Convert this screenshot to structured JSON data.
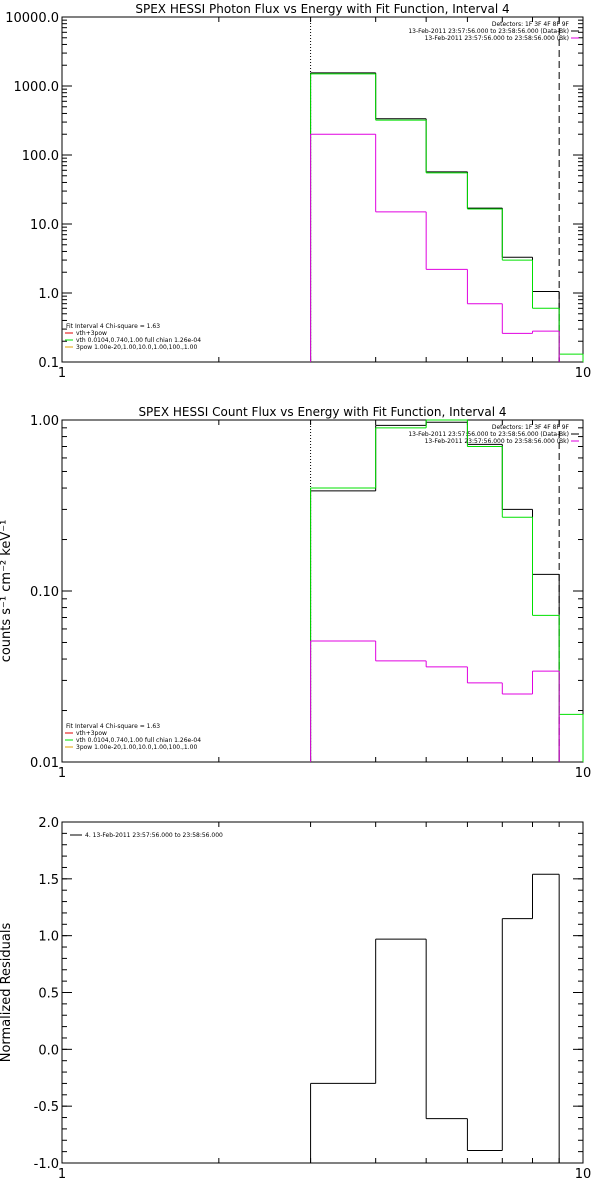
{
  "colors": {
    "black": "#000000",
    "green": "#00e000",
    "magenta": "#e000e0",
    "orange": "#e0a000",
    "red": "#e00000"
  },
  "chart_data": [
    {
      "type": "line",
      "title": "SPEX HESSI Photon Flux vs Energy with Fit Function, Interval 4",
      "xlabel": "",
      "ylabel": "",
      "xscale": "log",
      "yscale": "log",
      "xlim": [
        1,
        10
      ],
      "ylim": [
        0.1,
        10000
      ],
      "x_ticks": [
        "1",
        "10"
      ],
      "y_ticks": [
        {
          "v": 0.1,
          "label": "0.1"
        },
        {
          "v": 1,
          "label": "1.0"
        },
        {
          "v": 10,
          "label": "10.0"
        },
        {
          "v": 100,
          "label": "100.0"
        },
        {
          "v": 1000,
          "label": "1000.0"
        },
        {
          "v": 10000,
          "label": "10000.0"
        }
      ],
      "energy_edges": [
        3,
        4,
        5,
        6,
        7,
        8,
        9,
        10
      ],
      "vlines": [
        {
          "x": 3,
          "style": "dotted"
        },
        {
          "x": 9,
          "style": "dashed"
        }
      ],
      "series": [
        {
          "color": "black",
          "values": [
            1550,
            335,
            57,
            17,
            3.3,
            1.05,
            null
          ]
        },
        {
          "color": "green",
          "values": [
            1500,
            320,
            55,
            16.5,
            3.0,
            0.6,
            0.13
          ]
        },
        {
          "color": "magenta",
          "values": [
            200,
            15,
            2.2,
            0.7,
            0.26,
            0.28,
            null
          ]
        }
      ],
      "legend_top": [
        "Detectors: 1F 3F 4F 8F 9F",
        "13-Feb-2011 23:57:56.000 to 23:58:56.000 (Data-Bk)",
        "13-Feb-2011 23:57:56.000 to 23:58:56.000 (Bk)"
      ],
      "legend_bottom": [
        "Fit Interval  4    Chi-square = 1.63",
        "vth+3pow",
        "vth 0.0104,0.740,1.00  full chian 1.26e-04",
        "3pow 1.00e-20,1.00,10.0,1.00,100.,1.00"
      ]
    },
    {
      "type": "line",
      "title": "SPEX HESSI Count Flux vs Energy with Fit Function, Interval 4",
      "xlabel": "",
      "ylabel": "counts s⁻¹ cm⁻² keV⁻¹",
      "xscale": "log",
      "yscale": "log",
      "xlim": [
        1,
        10
      ],
      "ylim": [
        0.01,
        1.0
      ],
      "x_ticks": [
        "1",
        "10"
      ],
      "y_ticks": [
        {
          "v": 0.01,
          "label": "0.01"
        },
        {
          "v": 0.1,
          "label": "0.10"
        },
        {
          "v": 1.0,
          "label": "1.00"
        }
      ],
      "energy_edges": [
        3,
        4,
        5,
        6,
        7,
        8,
        9,
        10
      ],
      "vlines": [
        {
          "x": 3,
          "style": "dotted"
        },
        {
          "x": 9,
          "style": "dashed"
        }
      ],
      "series": [
        {
          "color": "black",
          "values": [
            0.385,
            0.93,
            0.97,
            0.72,
            0.3,
            0.125,
            null
          ]
        },
        {
          "color": "green",
          "values": [
            0.4,
            0.9,
            1.0,
            0.7,
            0.27,
            0.072,
            0.019
          ]
        },
        {
          "color": "magenta",
          "values": [
            0.051,
            0.039,
            0.036,
            0.029,
            0.025,
            0.034,
            null
          ]
        }
      ],
      "legend_top": [
        "Detectors: 1F 3F 4F 8F 9F",
        "13-Feb-2011 23:57:56.000 to 23:58:56.000 (Data-Bk)",
        "13-Feb-2011 23:57:56.000 to 23:58:56.000 (Bk)"
      ],
      "legend_bottom": [
        "Fit Interval  4    Chi-square = 1.63",
        "vth+3pow",
        "vth 0.0104,0.740,1.00  full chian 1.26e-04",
        "3pow 1.00e-20,1.00,10.0,1.00,100.,1.00"
      ]
    },
    {
      "type": "line",
      "title": "",
      "xlabel": "",
      "ylabel": "Normalized Residuals",
      "xscale": "log",
      "yscale": "linear",
      "xlim": [
        1,
        10
      ],
      "ylim": [
        -1.0,
        2.0
      ],
      "x_ticks": [
        "1",
        "10"
      ],
      "y_ticks": [
        {
          "v": -1.0,
          "label": "-1.0"
        },
        {
          "v": -0.5,
          "label": "-0.5"
        },
        {
          "v": 0.0,
          "label": "0.0"
        },
        {
          "v": 0.5,
          "label": "0.5"
        },
        {
          "v": 1.0,
          "label": "1.0"
        },
        {
          "v": 1.5,
          "label": "1.5"
        },
        {
          "v": 2.0,
          "label": "2.0"
        }
      ],
      "energy_edges": [
        3,
        4,
        5,
        6,
        7,
        8,
        9
      ],
      "series": [
        {
          "color": "black",
          "values": [
            -0.3,
            0.97,
            -0.61,
            -0.89,
            1.15,
            1.54
          ]
        }
      ],
      "legend_top": [
        "4. 13-Feb-2011 23:57:56.000 to 23:58:56.000"
      ]
    }
  ]
}
